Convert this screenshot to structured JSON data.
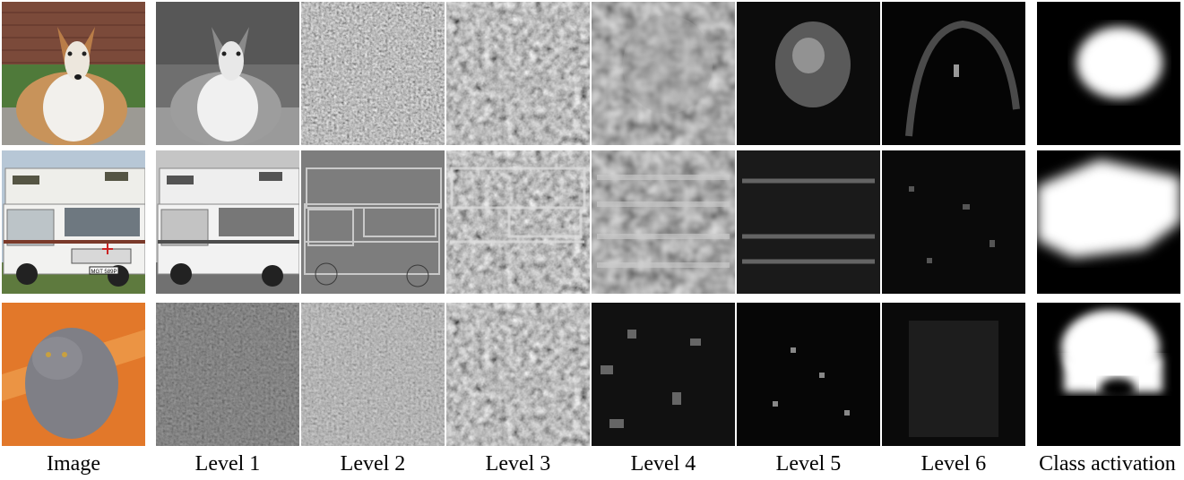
{
  "figure": {
    "columns": [
      {
        "key": "image",
        "label": "Image"
      },
      {
        "key": "level1",
        "label": "Level 1"
      },
      {
        "key": "level2",
        "label": "Level 2"
      },
      {
        "key": "level3",
        "label": "Level 3"
      },
      {
        "key": "level4",
        "label": "Level 4"
      },
      {
        "key": "level5",
        "label": "Level 5"
      },
      {
        "key": "level6",
        "label": "Level 6"
      },
      {
        "key": "activation",
        "label": "Class activation"
      }
    ],
    "rows": [
      {
        "key": "collie",
        "subject": "collie-dog"
      },
      {
        "key": "camper",
        "subject": "camper-van",
        "plate_text": "MGT 589P"
      },
      {
        "key": "cat",
        "subject": "persian-cat"
      }
    ],
    "colors": {
      "collie_fur": "#c8935a",
      "collie_white": "#f2f0ec",
      "brick": "#8a4a3a",
      "grass": "#4f7a3a",
      "van_body": "#eeeeea",
      "van_stripe": "#7a3a2a",
      "sky": "#b7c7d6",
      "cat_fur": "#7f7f86",
      "cat_eye": "#c8a040",
      "blanket": "#e2782a"
    }
  }
}
